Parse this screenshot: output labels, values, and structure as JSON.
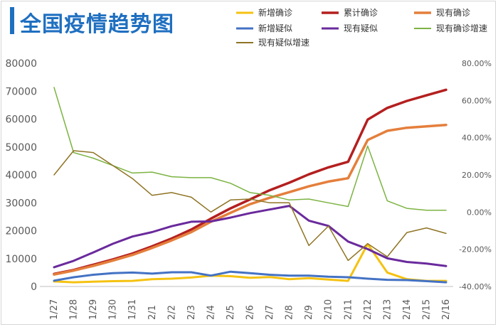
{
  "title": "全国疫情趋势图",
  "chart_data": {
    "type": "line",
    "title": "全国疫情趋势图",
    "categories": [
      "1/27",
      "1/28",
      "1/29",
      "1/30",
      "1/31",
      "2/1",
      "2/2",
      "2/3",
      "2/4",
      "2/5",
      "2/6",
      "2/7",
      "2/8",
      "2/9",
      "2/10",
      "2/11",
      "2/12",
      "2/13",
      "2/14",
      "2/15",
      "2/16"
    ],
    "y_left": {
      "min": 0,
      "max": 80000,
      "ticks": [
        0,
        10000,
        20000,
        30000,
        40000,
        50000,
        60000,
        70000,
        80000
      ]
    },
    "y_right": {
      "min": -0.4,
      "max": 0.8,
      "ticks": [
        "-40.00%",
        "-20.00%",
        "0.00%",
        "20.00%",
        "40.00%",
        "60.00%",
        "80.00%"
      ]
    },
    "grid": false,
    "legend_position": "top",
    "series": [
      {
        "name": "新增确诊",
        "axis": "left",
        "color": "#f5c211",
        "width": 3,
        "values": [
          1800,
          1500,
          1700,
          1900,
          2000,
          2600,
          2800,
          3200,
          3900,
          3700,
          3100,
          3400,
          2600,
          3000,
          2500,
          2000,
          15200,
          5000,
          2600,
          2000,
          2000
        ]
      },
      {
        "name": "累计确诊",
        "axis": "left",
        "color": "#b41f1f",
        "width": 3.5,
        "values": [
          4500,
          5900,
          7800,
          9700,
          11800,
          14400,
          17200,
          20400,
          24300,
          28000,
          31200,
          34500,
          37200,
          40200,
          42700,
          44700,
          59800,
          64000,
          66500,
          68500,
          70500
        ]
      },
      {
        "name": "现有确诊",
        "axis": "left",
        "color": "#e47f3c",
        "width": 3.5,
        "values": [
          4300,
          5700,
          7400,
          9300,
          11300,
          13800,
          16500,
          19500,
          23200,
          26400,
          29500,
          31800,
          33800,
          35900,
          37600,
          38800,
          52500,
          55800,
          56900,
          57400,
          57900
        ]
      },
      {
        "name": "新增疑似",
        "axis": "left",
        "color": "#4472c4",
        "width": 3,
        "values": [
          2100,
          3300,
          4200,
          4800,
          5000,
          4600,
          5100,
          5100,
          3900,
          5300,
          4800,
          4200,
          3900,
          3900,
          3500,
          3300,
          2800,
          2400,
          2300,
          1900,
          1500
        ]
      },
      {
        "name": "现有疑似",
        "axis": "left",
        "color": "#6a2a9c",
        "width": 3,
        "values": [
          6900,
          9200,
          12200,
          15300,
          17900,
          19500,
          21600,
          23200,
          23300,
          24700,
          26300,
          27600,
          28900,
          23600,
          21700,
          16100,
          13400,
          10100,
          8800,
          8200,
          7300
        ]
      },
      {
        "name": "现有确诊增速",
        "axis": "right",
        "color": "#7cb342",
        "width": 1.5,
        "values": [
          0.67,
          0.32,
          0.29,
          0.25,
          0.21,
          0.215,
          0.19,
          0.185,
          0.185,
          0.155,
          0.105,
          0.09,
          0.065,
          0.07,
          0.05,
          0.03,
          0.355,
          0.06,
          0.02,
          0.01,
          0.01
        ]
      },
      {
        "name": "现有疑似增速",
        "axis": "right",
        "color": "#8f7424",
        "width": 1.5,
        "values": [
          0.2,
          0.33,
          0.32,
          0.25,
          0.18,
          0.09,
          0.105,
          0.08,
          0.0,
          0.065,
          0.07,
          0.05,
          0.05,
          -0.18,
          -0.075,
          -0.26,
          -0.17,
          -0.24,
          -0.11,
          -0.085,
          -0.115
        ]
      }
    ]
  }
}
